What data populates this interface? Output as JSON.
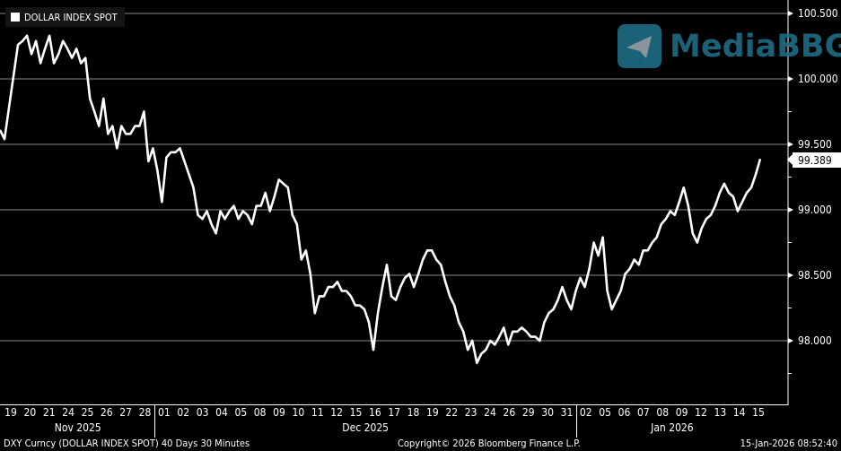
{
  "legend": {
    "label": "DOLLAR INDEX SPOT",
    "color": "#ffffff"
  },
  "watermark": {
    "text": "MediaBBG",
    "color": "#1f6c86",
    "icon": "telegram-plane-icon"
  },
  "footer": {
    "left": "DXY Curncy (DOLLAR INDEX SPOT) 40 Days 30 Minutes",
    "center": "Copyright© 2026 Bloomberg Finance L.P.",
    "right": "15-Jan-2026 08:52:40"
  },
  "chart_data": {
    "type": "line",
    "title": "",
    "ylim": [
      97.7,
      100.6
    ],
    "yticks": [
      "100.500",
      "100.000",
      "99.500",
      "99.000",
      "98.500",
      "98.000"
    ],
    "ytick_values": [
      100.5,
      100.0,
      99.5,
      99.0,
      98.5,
      98.0
    ],
    "grid": true,
    "last_value_label": "99.389",
    "x_day_labels": [
      "19",
      "20",
      "21",
      "24",
      "25",
      "26",
      "27",
      "28",
      "01",
      "02",
      "03",
      "04",
      "05",
      "08",
      "09",
      "10",
      "11",
      "12",
      "15",
      "16",
      "17",
      "18",
      "19",
      "22",
      "23",
      "24",
      "26",
      "29",
      "30",
      "31",
      "02",
      "05",
      "06",
      "07",
      "08",
      "09",
      "12",
      "13",
      "14",
      "15"
    ],
    "x_month_labels": [
      {
        "label": "Nov 2025",
        "first_day_index": 0,
        "last_day_index": 7
      },
      {
        "label": "Dec 2025",
        "first_day_index": 8,
        "last_day_index": 29
      },
      {
        "label": "Jan 2026",
        "first_day_index": 30,
        "last_day_index": 39
      }
    ],
    "series": [
      {
        "name": "DOLLAR INDEX SPOT",
        "color": "#ffffff",
        "values": [
          99.61,
          99.54,
          99.78,
          100.02,
          100.26,
          100.29,
          100.33,
          100.19,
          100.29,
          100.12,
          100.23,
          100.33,
          100.12,
          100.19,
          100.29,
          100.23,
          100.16,
          100.23,
          100.12,
          100.16,
          99.85,
          99.75,
          99.64,
          99.85,
          99.58,
          99.64,
          99.47,
          99.64,
          99.58,
          99.58,
          99.64,
          99.64,
          99.75,
          99.37,
          99.47,
          99.3,
          99.06,
          99.4,
          99.44,
          99.44,
          99.47,
          99.37,
          99.27,
          99.17,
          98.96,
          98.93,
          98.99,
          98.89,
          98.82,
          98.99,
          98.93,
          98.99,
          99.03,
          98.93,
          98.99,
          98.96,
          98.89,
          99.03,
          99.03,
          99.13,
          98.99,
          99.1,
          99.23,
          99.2,
          99.17,
          98.96,
          98.89,
          98.62,
          98.69,
          98.51,
          98.21,
          98.34,
          98.34,
          98.41,
          98.41,
          98.45,
          98.38,
          98.38,
          98.34,
          98.27,
          98.27,
          98.24,
          98.14,
          97.93,
          98.21,
          98.41,
          98.58,
          98.34,
          98.31,
          98.41,
          98.48,
          98.51,
          98.41,
          98.51,
          98.62,
          98.69,
          98.69,
          98.62,
          98.58,
          98.45,
          98.34,
          98.27,
          98.14,
          98.07,
          97.93,
          98.0,
          97.83,
          97.9,
          97.93,
          98.0,
          97.97,
          98.03,
          98.1,
          97.97,
          98.07,
          98.07,
          98.1,
          98.07,
          98.03,
          98.03,
          98.0,
          98.14,
          98.21,
          98.24,
          98.31,
          98.41,
          98.31,
          98.24,
          98.38,
          98.48,
          98.41,
          98.55,
          98.75,
          98.65,
          98.79,
          98.38,
          98.24,
          98.31,
          98.38,
          98.51,
          98.55,
          98.62,
          98.58,
          98.69,
          98.69,
          98.75,
          98.79,
          98.89,
          98.93,
          98.99,
          98.96,
          99.06,
          99.17,
          99.03,
          98.82,
          98.75,
          98.86,
          98.93,
          98.96,
          99.03,
          99.13,
          99.2,
          99.13,
          99.1,
          98.99,
          99.06,
          99.13,
          99.17,
          99.27,
          99.389
        ]
      }
    ]
  }
}
